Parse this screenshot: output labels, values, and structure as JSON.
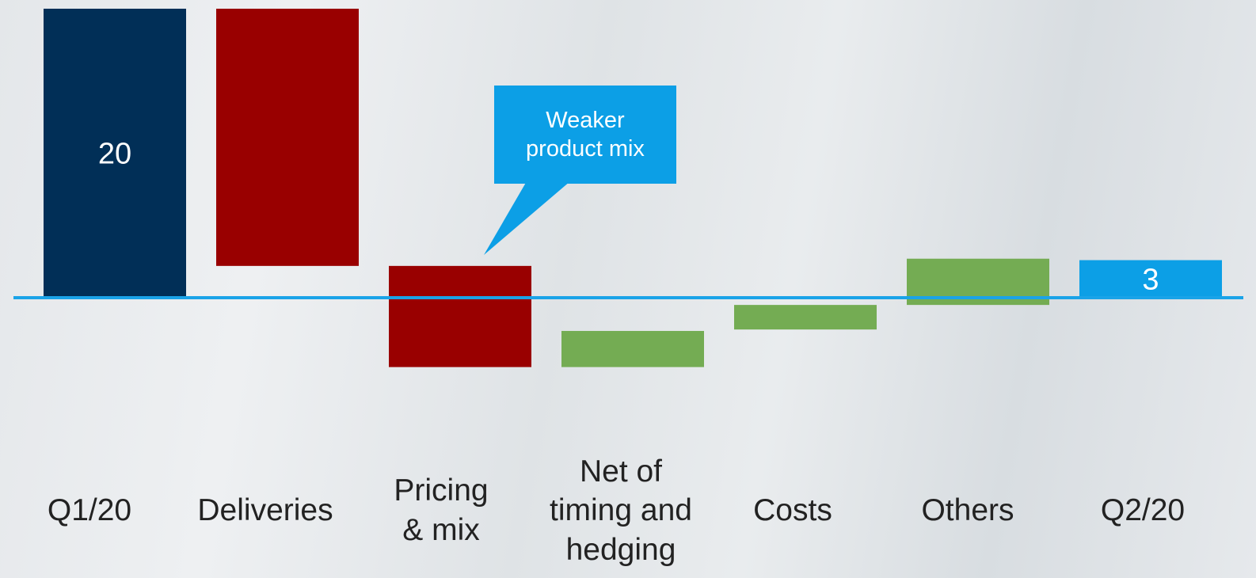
{
  "colors": {
    "start_bar": "#012f57",
    "negative": "#990000",
    "positive": "#74ac53",
    "end_bar": "#0c9fe6",
    "axis": "#1aa3e8",
    "value_label": "#ffffff",
    "callout_bg": "#0c9fe6"
  },
  "callout": {
    "text": "Weaker\nproduct mix"
  },
  "chart_data": {
    "type": "bar",
    "subtype": "waterfall",
    "title": "",
    "xlabel": "",
    "ylabel": "",
    "categories": [
      "Q1/20",
      "Deliveries",
      "Pricing\n& mix",
      "Net of\ntiming and\nhedging",
      "Costs",
      "Others",
      "Q2/20"
    ],
    "bars": [
      {
        "category": "Q1/20",
        "kind": "total",
        "start": 0,
        "end": 20,
        "label": "20"
      },
      {
        "category": "Deliveries",
        "kind": "decrease",
        "start": 20,
        "end": 2.2,
        "label": ""
      },
      {
        "category": "Pricing & mix",
        "kind": "decrease",
        "start": 2.2,
        "end": -4.8,
        "label": ""
      },
      {
        "category": "Net of timing and hedging",
        "kind": "increase",
        "start": -4.8,
        "end": -2.3,
        "label": ""
      },
      {
        "category": "Costs",
        "kind": "increase",
        "start": -2.2,
        "end": -0.5,
        "label": ""
      },
      {
        "category": "Others",
        "kind": "increase",
        "start": -0.5,
        "end": 2.7,
        "label": ""
      },
      {
        "category": "Q2/20",
        "kind": "total",
        "start": 0,
        "end": 2.6,
        "label": "3"
      }
    ],
    "ylim": [
      -7,
      20.5
    ],
    "grid": false,
    "legend": "none"
  }
}
